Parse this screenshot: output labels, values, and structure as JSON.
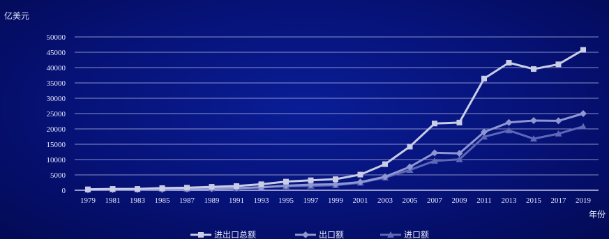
{
  "chart_data": {
    "type": "line",
    "ylabel": "亿美元",
    "xlabel": "年份",
    "ylim": [
      0,
      50000
    ],
    "yticks": [
      0,
      5000,
      10000,
      15000,
      20000,
      25000,
      30000,
      35000,
      40000,
      45000,
      50000
    ],
    "x": [
      "1979",
      "1981",
      "1983",
      "1985",
      "1987",
      "1989",
      "1991",
      "1993",
      "1995",
      "1997",
      "1999",
      "2001",
      "2003",
      "2005",
      "2007",
      "2009",
      "2011",
      "2013",
      "2015",
      "2017",
      "2019"
    ],
    "grid": true,
    "legend_position": "bottom",
    "series": [
      {
        "name": "进出口总额",
        "color": "#c9cde6",
        "marker": "square",
        "values": [
          293,
          440,
          436,
          696,
          827,
          1117,
          1357,
          1957,
          2809,
          3252,
          3607,
          5097,
          8510,
          14219,
          21761,
          22075,
          36419,
          41590,
          39530,
          41071,
          45779
        ]
      },
      {
        "name": "出口额",
        "color": "#8f97d2",
        "marker": "diamond",
        "values": [
          137,
          220,
          222,
          274,
          394,
          525,
          719,
          917,
          1488,
          1828,
          1949,
          2661,
          4382,
          7620,
          12200,
          12016,
          18984,
          22090,
          22735,
          22633,
          24995
        ]
      },
      {
        "name": "进口额",
        "color": "#5f67b8",
        "marker": "triangle",
        "values": [
          157,
          220,
          214,
          423,
          432,
          591,
          638,
          1040,
          1321,
          1424,
          1657,
          2436,
          4128,
          6600,
          9561,
          10059,
          17435,
          19500,
          16796,
          18438,
          20784
        ]
      }
    ]
  }
}
